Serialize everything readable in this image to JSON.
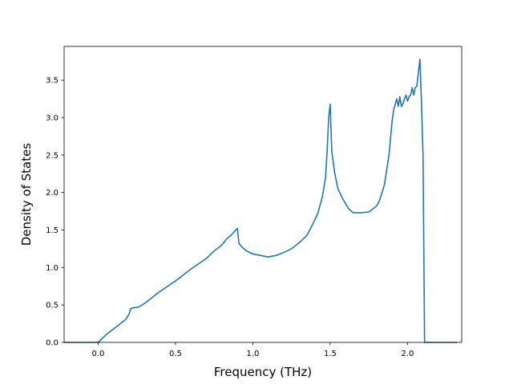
{
  "chart_data": {
    "type": "line",
    "title": "",
    "xlabel": "Frequency (THz)",
    "ylabel": "Density of States",
    "xlim": [
      -0.22,
      2.35
    ],
    "ylim": [
      0.0,
      3.95
    ],
    "grid": false,
    "line_color": "#1f77b4",
    "xticks": [
      {
        "value": 0.0,
        "label": "0.0"
      },
      {
        "value": 0.5,
        "label": "0.5"
      },
      {
        "value": 1.0,
        "label": "1.0"
      },
      {
        "value": 1.5,
        "label": "1.5"
      },
      {
        "value": 2.0,
        "label": "2.0"
      }
    ],
    "yticks": [
      {
        "value": 0.0,
        "label": "0.0"
      },
      {
        "value": 0.5,
        "label": "0.5"
      },
      {
        "value": 1.0,
        "label": "1.0"
      },
      {
        "value": 1.5,
        "label": "1.5"
      },
      {
        "value": 2.0,
        "label": "2.0"
      },
      {
        "value": 2.5,
        "label": "2.5"
      },
      {
        "value": 3.0,
        "label": "3.0"
      },
      {
        "value": 3.5,
        "label": "3.5"
      }
    ],
    "series": [
      {
        "x": [
          -0.22,
          0.0,
          0.05,
          0.1,
          0.15,
          0.18,
          0.2,
          0.21,
          0.22,
          0.26,
          0.3,
          0.35,
          0.4,
          0.45,
          0.5,
          0.55,
          0.6,
          0.65,
          0.7,
          0.75,
          0.8,
          0.83,
          0.86,
          0.88,
          0.9,
          0.91,
          0.93,
          0.96,
          1.0,
          1.05,
          1.1,
          1.15,
          1.2,
          1.25,
          1.3,
          1.35,
          1.38,
          1.42,
          1.45,
          1.47,
          1.48,
          1.49,
          1.5,
          1.51,
          1.53,
          1.55,
          1.58,
          1.6,
          1.62,
          1.65,
          1.7,
          1.75,
          1.8,
          1.82,
          1.85,
          1.88,
          1.9,
          1.91,
          1.93,
          1.94,
          1.95,
          1.96,
          1.97,
          1.98,
          1.99,
          2.0,
          2.01,
          2.02,
          2.03,
          2.04,
          2.05,
          2.06,
          2.07,
          2.08,
          2.09,
          2.1,
          2.11,
          2.12,
          2.2,
          2.32
        ],
        "y": [
          0.0,
          0.0,
          0.1,
          0.18,
          0.26,
          0.31,
          0.38,
          0.45,
          0.46,
          0.47,
          0.52,
          0.6,
          0.68,
          0.75,
          0.82,
          0.9,
          0.98,
          1.05,
          1.12,
          1.22,
          1.3,
          1.38,
          1.43,
          1.48,
          1.52,
          1.32,
          1.27,
          1.22,
          1.18,
          1.16,
          1.14,
          1.16,
          1.2,
          1.25,
          1.33,
          1.43,
          1.55,
          1.72,
          1.95,
          2.2,
          2.55,
          3.0,
          3.18,
          2.55,
          2.25,
          2.05,
          1.92,
          1.85,
          1.78,
          1.73,
          1.73,
          1.74,
          1.82,
          1.9,
          2.1,
          2.5,
          2.95,
          3.1,
          3.25,
          3.15,
          3.28,
          3.15,
          3.18,
          3.25,
          3.3,
          3.22,
          3.28,
          3.3,
          3.4,
          3.3,
          3.4,
          3.42,
          3.6,
          3.78,
          3.2,
          2.5,
          0.0,
          0.0,
          0.0,
          0.0
        ]
      }
    ]
  }
}
